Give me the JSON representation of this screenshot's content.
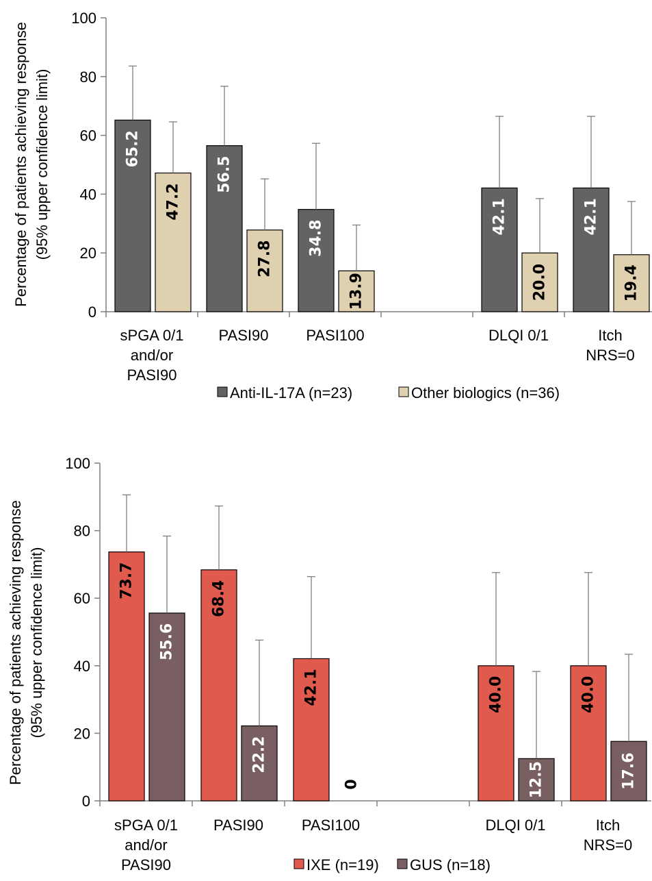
{
  "chart_data": [
    {
      "type": "bar",
      "categories": [
        "sPGA 0/1\nand/or\nPASI90",
        "PASI90",
        "PASI100",
        "",
        "DLQI 0/1",
        "Itch\nNRS=0"
      ],
      "ylabel": "Percentage of patients achieving response\n(95% upper confidence limit)",
      "ylim": [
        0,
        100
      ],
      "yticks": [
        0,
        20,
        40,
        60,
        80,
        100
      ],
      "grid": false,
      "legend_position": "bottom",
      "series": [
        {
          "name": "Anti-IL-17A (n=23)",
          "color": "#636363",
          "label_color": "#ffffff",
          "values": [
            65.2,
            56.5,
            34.8,
            null,
            42.1,
            42.1
          ],
          "labels": [
            "65.2",
            "56.5",
            "34.8",
            "",
            "42.1",
            "42.1"
          ],
          "upper_ci": [
            83.6,
            76.7,
            57.3,
            null,
            66.5,
            66.5
          ]
        },
        {
          "name": "Other biologics (n=36)",
          "color": "#dfd0b0",
          "label_color": "#000000",
          "values": [
            47.2,
            27.8,
            13.9,
            null,
            20.0,
            19.4
          ],
          "labels": [
            "47.2",
            "27.8",
            "13.9",
            "",
            "20.0",
            "19.4"
          ],
          "upper_ci": [
            64.6,
            45.2,
            29.5,
            null,
            38.5,
            37.5
          ]
        }
      ]
    },
    {
      "type": "bar",
      "categories": [
        "sPGA 0/1\nand/or\nPASI90",
        "PASI90",
        "PASI100",
        "",
        "DLQI 0/1",
        "Itch\nNRS=0"
      ],
      "ylabel": "Percentage of patients achieving response\n(95% upper confidence limit)",
      "ylim": [
        0,
        100
      ],
      "yticks": [
        0,
        20,
        40,
        60,
        80,
        100
      ],
      "grid": false,
      "legend_position": "bottom",
      "series": [
        {
          "name": "IXE (n=19)",
          "color": "#e05a4e",
          "label_color": "#000000",
          "values": [
            73.7,
            68.4,
            42.1,
            null,
            40.0,
            40.0
          ],
          "labels": [
            "73.7",
            "68.4",
            "42.1",
            "",
            "40.0",
            "40.0"
          ],
          "upper_ci": [
            90.6,
            87.3,
            66.4,
            null,
            67.6,
            67.6
          ]
        },
        {
          "name": "GUS (n=18)",
          "color": "#7a5f62",
          "label_color": "#ffffff",
          "values": [
            55.6,
            22.2,
            0,
            null,
            12.5,
            17.6
          ],
          "labels": [
            "55.6",
            "22.2",
            "0",
            "",
            "12.5",
            "17.6"
          ],
          "upper_ci": [
            78.4,
            47.6,
            null,
            null,
            38.3,
            43.4
          ]
        }
      ]
    }
  ]
}
